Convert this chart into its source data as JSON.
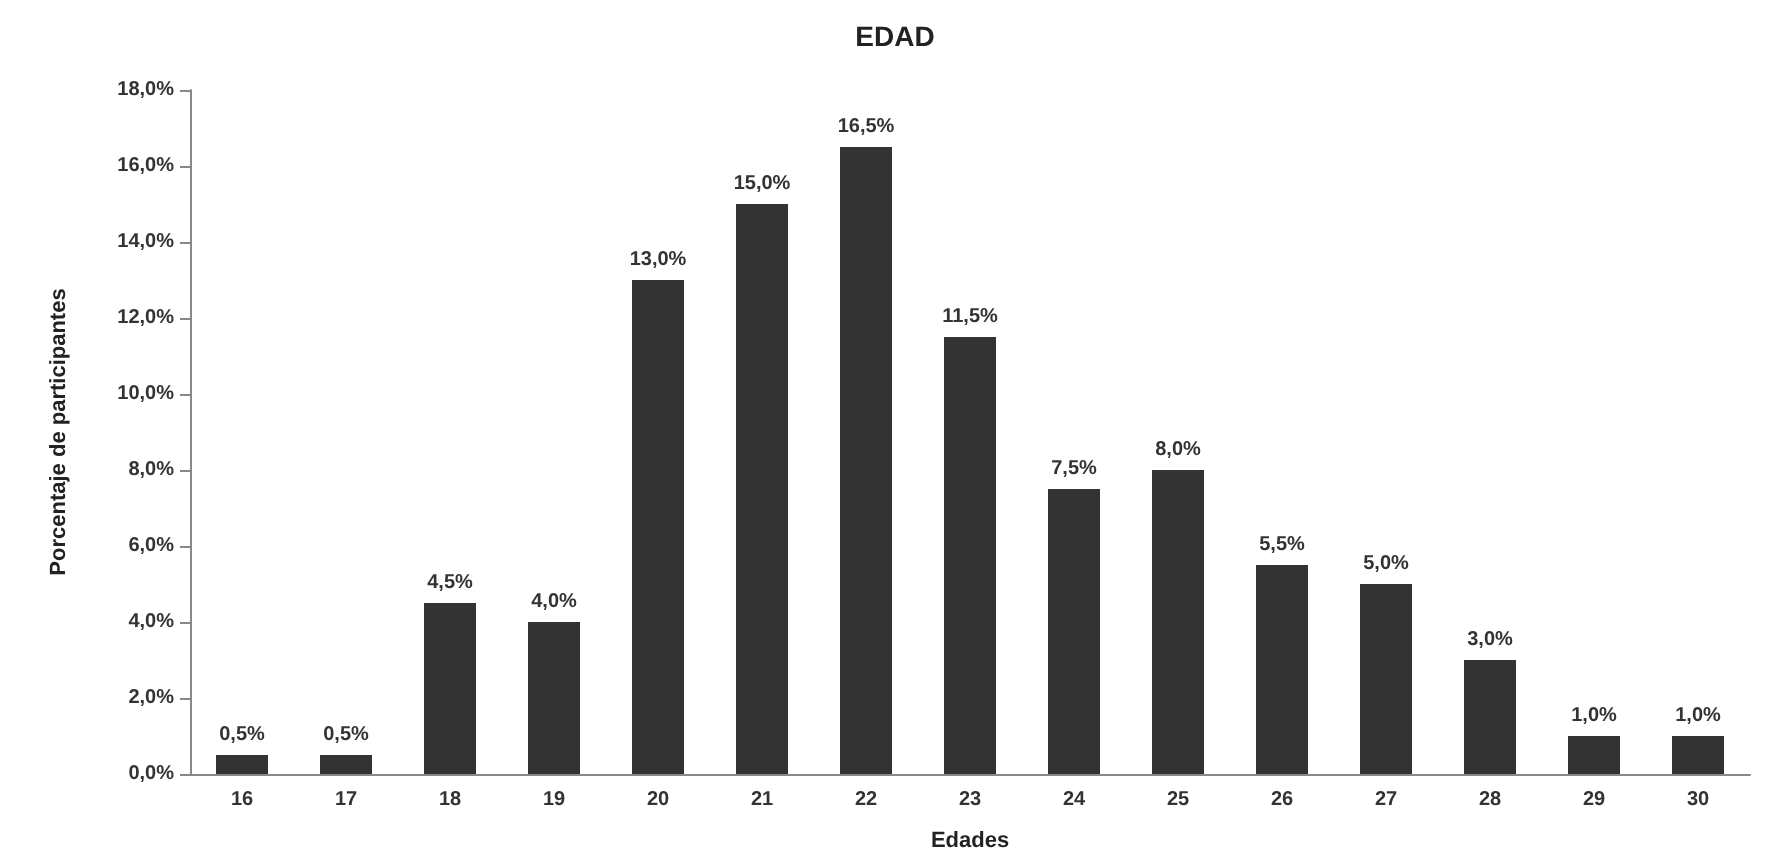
{
  "chart_data": {
    "type": "bar",
    "title": "EDAD",
    "xlabel": "Edades",
    "ylabel": "Porcentaje de participantes",
    "categories": [
      "16",
      "17",
      "18",
      "19",
      "20",
      "21",
      "22",
      "23",
      "24",
      "25",
      "26",
      "27",
      "28",
      "29",
      "30"
    ],
    "values": [
      0.5,
      0.5,
      4.5,
      4.0,
      13.0,
      15.0,
      16.5,
      11.5,
      7.5,
      8.0,
      5.5,
      5.0,
      3.0,
      1.0,
      1.0
    ],
    "value_labels": [
      "0,5%",
      "0,5%",
      "4,5%",
      "4,0%",
      "13,0%",
      "15,0%",
      "16,5%",
      "11,5%",
      "7,5%",
      "8,0%",
      "5,5%",
      "5,0%",
      "3,0%",
      "1,0%",
      "1,0%"
    ],
    "color": "#333333",
    "ylim": [
      0,
      18
    ],
    "yticks": [
      {
        "value": 0,
        "label": "0,0%"
      },
      {
        "value": 2,
        "label": "2,0%"
      },
      {
        "value": 4,
        "label": "4,0%"
      },
      {
        "value": 6,
        "label": "6,0%"
      },
      {
        "value": 8,
        "label": "8,0%"
      },
      {
        "value": 10,
        "label": "10,0%"
      },
      {
        "value": 12,
        "label": "12,0%"
      },
      {
        "value": 14,
        "label": "14,0%"
      },
      {
        "value": 16,
        "label": "16,0%"
      },
      {
        "value": 18,
        "label": "18,0%"
      }
    ],
    "grid": false
  }
}
